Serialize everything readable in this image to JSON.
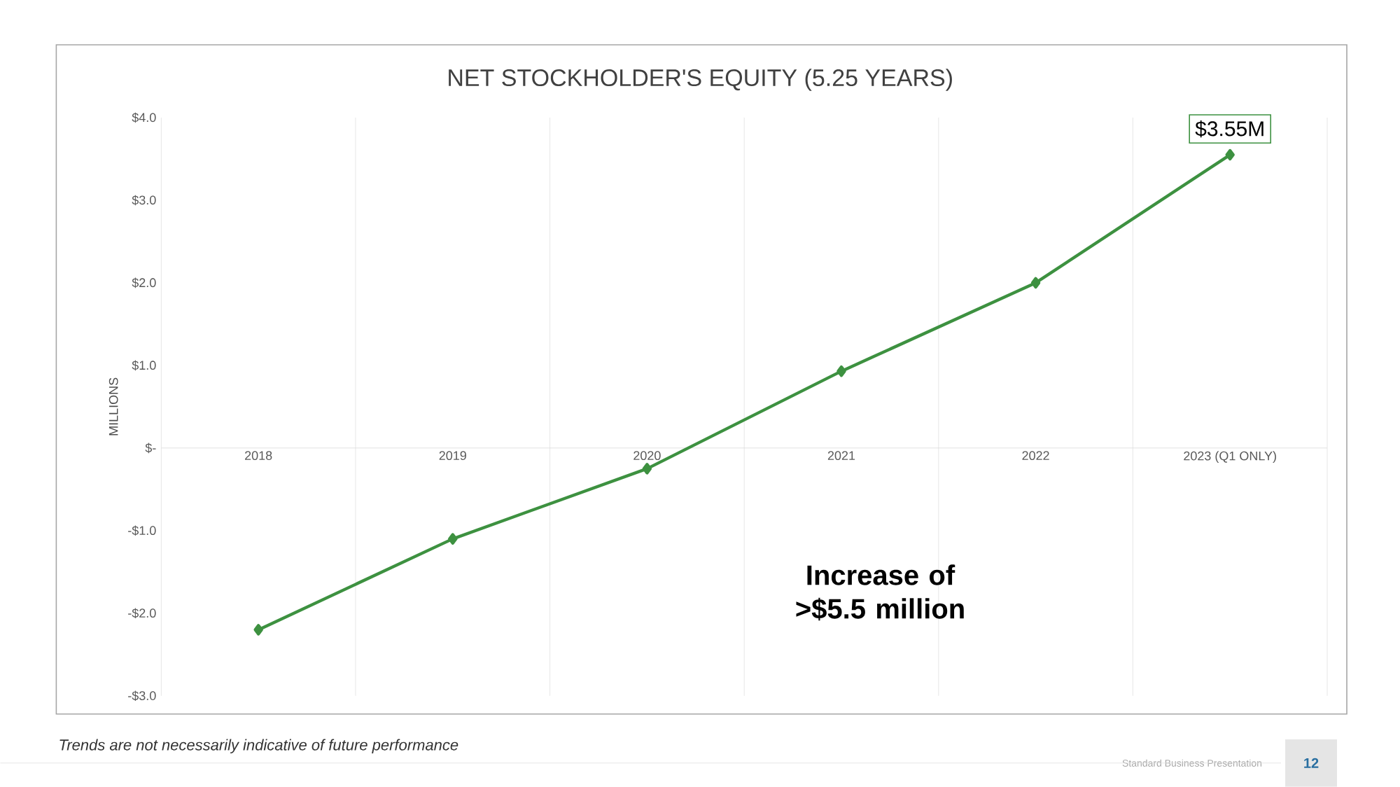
{
  "chart_data": {
    "type": "line",
    "title": "NET STOCKHOLDER'S EQUITY (5.25 YEARS)",
    "ylabel": "MILLIONS",
    "categories": [
      "2018",
      "2019",
      "2020",
      "2021",
      "2022",
      "2023 (Q1 ONLY)"
    ],
    "series": [
      {
        "color": "#3d9140",
        "values": [
          -2.2,
          -1.1,
          -0.25,
          0.93,
          2.0,
          3.55
        ]
      }
    ],
    "ylim": [
      -3,
      4
    ],
    "yticks": [
      {
        "value": -3,
        "label": "-$3.0"
      },
      {
        "value": -2,
        "label": "-$2.0"
      },
      {
        "value": -1,
        "label": "-$1.0"
      },
      {
        "value": 0,
        "label": "$-"
      },
      {
        "value": 1,
        "label": "$1.0"
      },
      {
        "value": 2,
        "label": "$2.0"
      },
      {
        "value": 3,
        "label": "$3.0"
      },
      {
        "value": 4,
        "label": "$4.0"
      }
    ],
    "grid": "x",
    "marker": "diamond",
    "line_style": "solid",
    "annotations": [
      {
        "text": "$3.55M",
        "x": "2023 (Q1 ONLY)",
        "y": 3.55
      },
      "Increase of >$5.5 million",
      "Trends are not necessarily indicative of future performance",
      "Standard Business Presentation",
      "12"
    ]
  }
}
